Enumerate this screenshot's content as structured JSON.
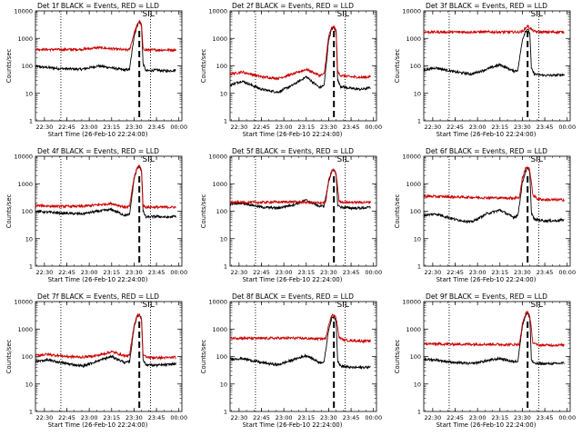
{
  "chart_data": [
    {
      "type": "line",
      "title": "Det 1f BLACK = Events, RED = LLD",
      "xlabel": "Start Time (26-Feb-10 22:24:00)",
      "ylabel": "Counts/sec",
      "x_tick_labels": [
        "22:30",
        "22:45",
        "23:00",
        "23:15",
        "23:30",
        "23:45",
        "00:00"
      ],
      "x_tick_minutes": [
        30,
        45,
        60,
        75,
        90,
        105,
        120
      ],
      "xlim_minutes": [
        24,
        122
      ],
      "y_scale": "log",
      "ylim": [
        1,
        10000
      ],
      "y_tick_labels": [
        "1",
        "10",
        "100",
        "1000",
        "10000"
      ],
      "annotation": "SIL",
      "vlines_dotted_minutes": [
        41,
        101
      ],
      "vline_dashed_minutes": 93.5,
      "series": [
        {
          "name": "Events",
          "color": "#000000",
          "x": [
            24,
            40,
            55,
            66,
            75,
            84,
            87,
            90,
            92,
            93.5,
            95,
            96,
            98,
            105,
            112,
            118
          ],
          "y": [
            95,
            80,
            75,
            100,
            85,
            70,
            75,
            1200,
            2800,
            4200,
            2800,
            120,
            65,
            70,
            65,
            70
          ]
        },
        {
          "name": "LLD",
          "color": "#cc0000",
          "x": [
            24,
            40,
            55,
            66,
            75,
            84,
            87,
            90,
            92,
            93.5,
            95,
            96,
            98,
            105,
            112,
            118
          ],
          "y": [
            400,
            390,
            400,
            460,
            420,
            380,
            390,
            1500,
            3000,
            4400,
            3000,
            420,
            380,
            380,
            380,
            380
          ]
        }
      ]
    },
    {
      "type": "line",
      "title": "Det 2f BLACK = Events, RED = LLD",
      "xlabel": "Start Time (26-Feb-10 22:24:00)",
      "ylabel": "Counts/sec",
      "x_tick_labels": [
        "22:30",
        "22:45",
        "23:00",
        "23:15",
        "23:30",
        "23:45",
        "00:00"
      ],
      "x_tick_minutes": [
        30,
        45,
        60,
        75,
        90,
        105,
        120
      ],
      "xlim_minutes": [
        24,
        122
      ],
      "y_scale": "log",
      "ylim": [
        1,
        10000
      ],
      "y_tick_labels": [
        "1",
        "10",
        "100",
        "1000",
        "10000"
      ],
      "annotation": "SIL",
      "vlines_dotted_minutes": [
        41,
        101
      ],
      "vline_dashed_minutes": 93.5,
      "series": [
        {
          "name": "Events",
          "color": "#000000",
          "x": [
            24,
            32,
            45,
            56,
            66,
            75,
            84,
            87,
            90,
            92,
            93.5,
            95,
            96,
            98,
            105,
            112,
            118
          ],
          "y": [
            20,
            28,
            14,
            11,
            20,
            40,
            16,
            20,
            900,
            2200,
            2500,
            1800,
            30,
            18,
            15,
            14,
            16
          ]
        },
        {
          "name": "LLD",
          "color": "#cc0000",
          "x": [
            24,
            32,
            45,
            56,
            66,
            75,
            84,
            87,
            90,
            92,
            93.5,
            95,
            96,
            98,
            105,
            112,
            118
          ],
          "y": [
            50,
            60,
            40,
            35,
            50,
            75,
            45,
            50,
            1200,
            2400,
            2700,
            1900,
            60,
            45,
            40,
            38,
            40
          ]
        }
      ]
    },
    {
      "type": "line",
      "title": "Det 3f BLACK = Events, RED = LLD",
      "xlabel": "Start Time (26-Feb-10 22:24:00)",
      "ylabel": "Counts/sec",
      "x_tick_labels": [
        "22:30",
        "22:45",
        "23:00",
        "23:15",
        "23:30",
        "23:45",
        "00:00"
      ],
      "x_tick_minutes": [
        30,
        45,
        60,
        75,
        90,
        105,
        120
      ],
      "xlim_minutes": [
        24,
        122
      ],
      "y_scale": "log",
      "ylim": [
        1,
        10000
      ],
      "y_tick_labels": [
        "1",
        "10",
        "100",
        "1000",
        "10000"
      ],
      "annotation": "SIL",
      "vlines_dotted_minutes": [
        41,
        101
      ],
      "vline_dashed_minutes": 93.5,
      "series": [
        {
          "name": "Events",
          "color": "#000000",
          "x": [
            24,
            32,
            45,
            56,
            66,
            75,
            84,
            87,
            90,
            92,
            93.5,
            95,
            96,
            98,
            105,
            112,
            118
          ],
          "y": [
            70,
            85,
            60,
            50,
            75,
            110,
            65,
            70,
            900,
            1800,
            2200,
            1500,
            80,
            50,
            45,
            45,
            48
          ]
        },
        {
          "name": "LLD",
          "color": "#cc0000",
          "x": [
            24,
            45,
            66,
            84,
            88,
            90,
            92,
            93.5,
            95,
            97,
            100,
            105,
            118
          ],
          "y": [
            1700,
            1700,
            1700,
            1700,
            1700,
            1800,
            2300,
            2900,
            2400,
            1900,
            1700,
            1700,
            1700
          ]
        }
      ]
    },
    {
      "type": "line",
      "title": "Det 4f BLACK = Events, RED = LLD",
      "xlabel": "Start Time (26-Feb-10 22:24:00)",
      "ylabel": "Counts/sec",
      "x_tick_labels": [
        "22:30",
        "22:45",
        "23:00",
        "23:15",
        "23:30",
        "23:45",
        "00:00"
      ],
      "x_tick_minutes": [
        30,
        45,
        60,
        75,
        90,
        105,
        120
      ],
      "xlim_minutes": [
        24,
        122
      ],
      "y_scale": "log",
      "ylim": [
        1,
        10000
      ],
      "y_tick_labels": [
        "1",
        "10",
        "100",
        "1000",
        "10000"
      ],
      "annotation": "SIL",
      "vlines_dotted_minutes": [
        41,
        101
      ],
      "vline_dashed_minutes": 93.5,
      "series": [
        {
          "name": "Events",
          "color": "#000000",
          "x": [
            24,
            40,
            55,
            66,
            75,
            84,
            87,
            90,
            92,
            93.5,
            95,
            96,
            98,
            105,
            112,
            118
          ],
          "y": [
            100,
            85,
            80,
            100,
            115,
            70,
            75,
            1500,
            3500,
            4300,
            3000,
            100,
            60,
            65,
            60,
            65
          ]
        },
        {
          "name": "LLD",
          "color": "#cc0000",
          "x": [
            24,
            40,
            55,
            66,
            75,
            84,
            87,
            90,
            92,
            93.5,
            95,
            96,
            98,
            105,
            112,
            118
          ],
          "y": [
            160,
            150,
            150,
            170,
            190,
            140,
            150,
            1700,
            3700,
            4500,
            3200,
            160,
            140,
            140,
            140,
            140
          ]
        }
      ]
    },
    {
      "type": "line",
      "title": "Det 5f BLACK = Events, RED = LLD",
      "xlabel": "Start Time (26-Feb-10 22:24:00)",
      "ylabel": "Counts/sec",
      "x_tick_labels": [
        "22:30",
        "22:45",
        "23:00",
        "23:15",
        "23:30",
        "23:45",
        "00:00"
      ],
      "x_tick_minutes": [
        30,
        45,
        60,
        75,
        90,
        105,
        120
      ],
      "xlim_minutes": [
        24,
        122
      ],
      "y_scale": "log",
      "ylim": [
        1,
        10000
      ],
      "y_tick_labels": [
        "1",
        "10",
        "100",
        "1000",
        "10000"
      ],
      "annotation": "SIL",
      "vlines_dotted_minutes": [
        41,
        101
      ],
      "vline_dashed_minutes": 93.5,
      "series": [
        {
          "name": "Events",
          "color": "#000000",
          "x": [
            24,
            32,
            45,
            56,
            66,
            75,
            84,
            87,
            90,
            92,
            93.5,
            95,
            96,
            98,
            105,
            112,
            118
          ],
          "y": [
            180,
            200,
            140,
            130,
            170,
            250,
            150,
            160,
            1200,
            2800,
            3100,
            2200,
            170,
            140,
            130,
            130,
            140
          ]
        },
        {
          "name": "LLD",
          "color": "#cc0000",
          "x": [
            24,
            45,
            66,
            84,
            88,
            90,
            92,
            93.5,
            95,
            97,
            100,
            105,
            118
          ],
          "y": [
            210,
            210,
            220,
            200,
            210,
            1300,
            2900,
            3200,
            2300,
            230,
            210,
            210,
            210
          ]
        }
      ]
    },
    {
      "type": "line",
      "title": "Det 6f BLACK = Events, RED = LLD",
      "xlabel": "Start Time (26-Feb-10 22:24:00)",
      "ylabel": "Counts/sec",
      "x_tick_labels": [
        "22:30",
        "22:45",
        "23:00",
        "23:15",
        "23:30",
        "23:45",
        "00:00"
      ],
      "x_tick_minutes": [
        30,
        45,
        60,
        75,
        90,
        105,
        120
      ],
      "xlim_minutes": [
        24,
        122
      ],
      "y_scale": "log",
      "ylim": [
        1,
        10000
      ],
      "y_tick_labels": [
        "1",
        "10",
        "100",
        "1000",
        "10000"
      ],
      "annotation": "SIL",
      "vlines_dotted_minutes": [
        41,
        101
      ],
      "vline_dashed_minutes": 93.5,
      "series": [
        {
          "name": "Events",
          "color": "#000000",
          "x": [
            24,
            32,
            45,
            56,
            66,
            75,
            84,
            87,
            90,
            92,
            93.5,
            95,
            96,
            98,
            105,
            112,
            118
          ],
          "y": [
            70,
            80,
            50,
            40,
            80,
            110,
            60,
            70,
            1100,
            2600,
            3600,
            2500,
            90,
            50,
            45,
            45,
            48
          ]
        },
        {
          "name": "LLD",
          "color": "#cc0000",
          "x": [
            24,
            45,
            66,
            84,
            88,
            90,
            92,
            93.5,
            95,
            97,
            100,
            105,
            118
          ],
          "y": [
            350,
            330,
            310,
            300,
            320,
            1600,
            3500,
            4200,
            3000,
            400,
            280,
            260,
            260
          ]
        }
      ]
    },
    {
      "type": "line",
      "title": "Det 7f BLACK = Events, RED = LLD",
      "xlabel": "Start Time (26-Feb-10 22:24:00)",
      "ylabel": "Counts/sec",
      "x_tick_labels": [
        "22:30",
        "22:45",
        "23:00",
        "23:15",
        "23:30",
        "23:45",
        "00:00"
      ],
      "x_tick_minutes": [
        30,
        45,
        60,
        75,
        90,
        105,
        120
      ],
      "xlim_minutes": [
        24,
        122
      ],
      "y_scale": "log",
      "ylim": [
        1,
        10000
      ],
      "y_tick_labels": [
        "1",
        "10",
        "100",
        "1000",
        "10000"
      ],
      "annotation": "SIL",
      "vlines_dotted_minutes": [
        41,
        101
      ],
      "vline_dashed_minutes": 93.5,
      "series": [
        {
          "name": "Events",
          "color": "#000000",
          "x": [
            24,
            32,
            45,
            56,
            66,
            75,
            84,
            87,
            90,
            92,
            93.5,
            95,
            96,
            98,
            105,
            112,
            118
          ],
          "y": [
            65,
            75,
            55,
            45,
            70,
            100,
            60,
            65,
            1200,
            2800,
            3300,
            2300,
            75,
            50,
            48,
            50,
            55
          ]
        },
        {
          "name": "LLD",
          "color": "#cc0000",
          "x": [
            24,
            32,
            45,
            56,
            66,
            75,
            84,
            87,
            90,
            92,
            93.5,
            95,
            96,
            98,
            105,
            112,
            118
          ],
          "y": [
            110,
            120,
            100,
            95,
            110,
            150,
            105,
            110,
            1400,
            3000,
            3500,
            2400,
            120,
            95,
            90,
            90,
            95
          ]
        }
      ]
    },
    {
      "type": "line",
      "title": "Det 8f BLACK = Events, RED = LLD",
      "xlabel": "Start Time (26-Feb-10 22:24:00)",
      "ylabel": "Counts/sec",
      "x_tick_labels": [
        "22:30",
        "22:45",
        "23:00",
        "23:15",
        "23:30",
        "23:45",
        "00:00"
      ],
      "x_tick_minutes": [
        30,
        45,
        60,
        75,
        90,
        105,
        120
      ],
      "xlim_minutes": [
        24,
        122
      ],
      "y_scale": "log",
      "ylim": [
        1,
        10000
      ],
      "y_tick_labels": [
        "1",
        "10",
        "100",
        "1000",
        "10000"
      ],
      "annotation": "SIL",
      "vlines_dotted_minutes": [
        41,
        101
      ],
      "vline_dashed_minutes": 93.5,
      "series": [
        {
          "name": "Events",
          "color": "#000000",
          "x": [
            24,
            32,
            45,
            56,
            66,
            75,
            84,
            87,
            90,
            92,
            93.5,
            95,
            96,
            98,
            105,
            112,
            118
          ],
          "y": [
            80,
            85,
            60,
            50,
            75,
            110,
            60,
            65,
            1000,
            2400,
            2900,
            2000,
            70,
            45,
            40,
            40,
            42
          ]
        },
        {
          "name": "LLD",
          "color": "#cc0000",
          "x": [
            24,
            45,
            66,
            84,
            88,
            90,
            92,
            93.5,
            95,
            97,
            100,
            105,
            118
          ],
          "y": [
            470,
            460,
            470,
            440,
            450,
            1500,
            3000,
            3500,
            2500,
            500,
            400,
            380,
            360
          ]
        }
      ]
    },
    {
      "type": "line",
      "title": "Det 9f BLACK = Events, RED = LLD",
      "xlabel": "Start Time (26-Feb-10 22:24:00)",
      "ylabel": "Counts/sec",
      "x_tick_labels": [
        "22:30",
        "22:45",
        "23:00",
        "23:15",
        "23:30",
        "23:45",
        "00:00"
      ],
      "x_tick_minutes": [
        30,
        45,
        60,
        75,
        90,
        105,
        120
      ],
      "xlim_minutes": [
        24,
        122
      ],
      "y_scale": "log",
      "ylim": [
        1,
        10000
      ],
      "y_tick_labels": [
        "1",
        "10",
        "100",
        "1000",
        "10000"
      ],
      "annotation": "SIL",
      "vlines_dotted_minutes": [
        41,
        101
      ],
      "vline_dashed_minutes": 93.5,
      "series": [
        {
          "name": "Events",
          "color": "#000000",
          "x": [
            24,
            32,
            45,
            56,
            66,
            75,
            84,
            87,
            90,
            92,
            93.5,
            95,
            96,
            98,
            105,
            112,
            118
          ],
          "y": [
            80,
            75,
            60,
            55,
            70,
            85,
            65,
            70,
            1300,
            3000,
            3800,
            2600,
            75,
            55,
            55,
            55,
            58
          ]
        },
        {
          "name": "LLD",
          "color": "#cc0000",
          "x": [
            24,
            45,
            66,
            84,
            88,
            90,
            92,
            93.5,
            95,
            97,
            100,
            105,
            118
          ],
          "y": [
            290,
            280,
            280,
            270,
            280,
            1500,
            3400,
            4300,
            3000,
            330,
            260,
            260,
            260
          ]
        }
      ]
    }
  ]
}
